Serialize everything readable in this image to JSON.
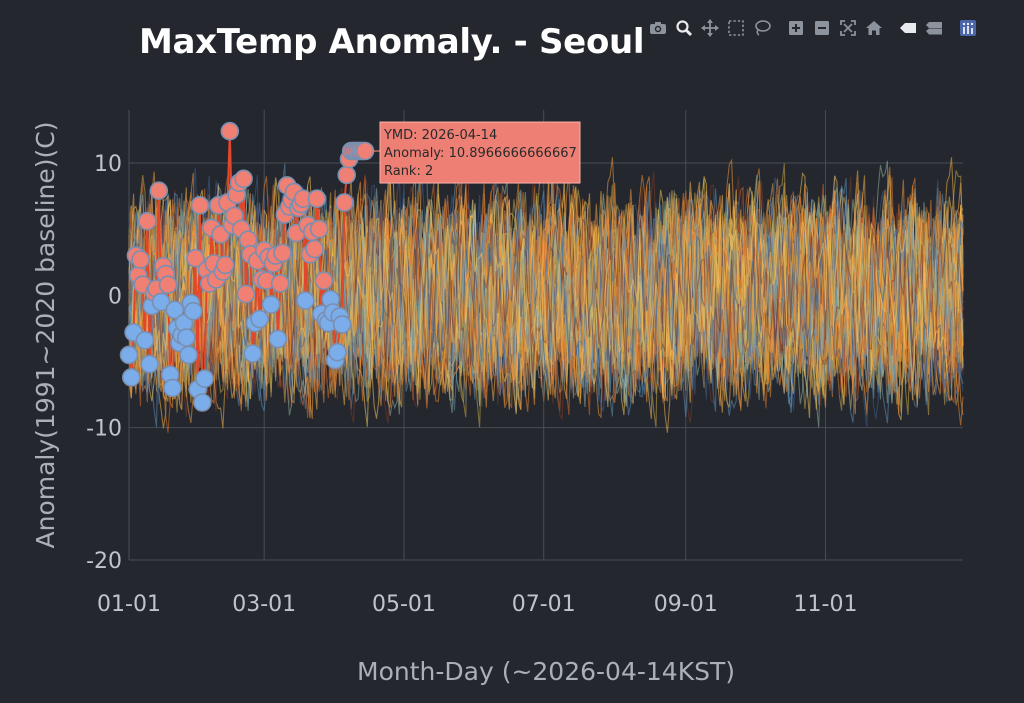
{
  "chart_data": {
    "type": "line",
    "title": "MaxTemp Anomaly. - Seoul",
    "xlabel": "Month-Day (~2026-04-14KST)",
    "ylabel": "Anomaly(1991~2020 baseline)(C)",
    "xlim": [
      "01-01",
      "12-31"
    ],
    "ylim": [
      -20,
      14
    ],
    "x_ticks": [
      "01-01",
      "03-01",
      "05-01",
      "07-01",
      "09-01",
      "11-01"
    ],
    "y_ticks": [
      10,
      0,
      -10,
      -20
    ],
    "grid": true,
    "legend": "none",
    "background_series": {
      "count": 60,
      "description_range": [
        -13,
        13
      ],
      "colors": [
        "#f2993a",
        "#f4b14a",
        "#e98a32",
        "#d96f2b",
        "#c9a747",
        "#8fb1a0",
        "#5c8fb8",
        "#3d5e8f",
        "#7b3b2a",
        "#f6c55b"
      ]
    },
    "highlight_series": {
      "year": "2026",
      "x": [
        "01-01",
        "01-02",
        "01-03",
        "01-04",
        "01-05",
        "01-06",
        "01-07",
        "01-08",
        "01-09",
        "01-10",
        "01-11",
        "01-12",
        "01-13",
        "01-14",
        "01-15",
        "01-16",
        "01-17",
        "01-18",
        "01-19",
        "01-20",
        "01-21",
        "01-22",
        "01-23",
        "01-24",
        "01-25",
        "01-26",
        "01-27",
        "01-28",
        "01-29",
        "01-30",
        "01-31",
        "02-01",
        "02-02",
        "02-03",
        "02-04",
        "02-05",
        "02-06",
        "02-07",
        "02-08",
        "02-09",
        "02-10",
        "02-11",
        "02-12",
        "02-13",
        "02-14",
        "02-15",
        "02-16",
        "02-17",
        "02-18",
        "02-19",
        "02-20",
        "02-21",
        "02-22",
        "02-23",
        "02-24",
        "02-25",
        "02-26",
        "02-27",
        "02-28",
        "03-01",
        "03-02",
        "03-03",
        "03-04",
        "03-05",
        "03-06",
        "03-07",
        "03-08",
        "03-09",
        "03-10",
        "03-11",
        "03-12",
        "03-13",
        "03-14",
        "03-15",
        "03-16",
        "03-17",
        "03-18",
        "03-19",
        "03-20",
        "03-21",
        "03-22",
        "03-23",
        "03-24",
        "03-25",
        "03-26",
        "03-27",
        "03-28",
        "03-29",
        "03-30",
        "03-31",
        "04-01",
        "04-02",
        "04-03",
        "04-04",
        "04-05",
        "04-06",
        "04-07",
        "04-08",
        "04-09",
        "04-10",
        "04-11",
        "04-12",
        "04-13",
        "04-14"
      ],
      "values": [
        -4.5,
        -6.2,
        -2.8,
        3.0,
        1.5,
        2.7,
        0.8,
        -3.4,
        5.6,
        -5.2,
        -0.8,
        0.2,
        0.5,
        7.9,
        -0.5,
        2.2,
        1.6,
        0.8,
        -6.0,
        -7.0,
        -1.1,
        -2.5,
        -3.6,
        -3.0,
        -2.1,
        -3.2,
        -4.5,
        -0.6,
        -1.2,
        2.8,
        -7.1,
        6.8,
        -8.1,
        -6.3,
        1.9,
        0.9,
        5.1,
        2.4,
        1.2,
        6.8,
        4.6,
        1.8,
        2.3,
        7.0,
        12.4,
        5.3,
        6.0,
        7.6,
        8.5,
        5.0,
        8.8,
        0.1,
        4.2,
        3.1,
        -4.4,
        -2.1,
        2.6,
        -1.8,
        1.2,
        3.4,
        1.1,
        2.9,
        -0.7,
        2.4,
        3.0,
        -3.3,
        0.9,
        3.2,
        6.1,
        8.3,
        6.7,
        7.2,
        7.8,
        4.7,
        6.6,
        6.9,
        7.3,
        -0.4,
        5.3,
        3.1,
        4.8,
        3.5,
        7.3,
        5.0,
        -1.4,
        1.1,
        -1.9,
        -2.1,
        -0.3,
        -1.3,
        -4.9,
        -4.3,
        -1.6,
        -2.2,
        7.0,
        9.1,
        10.3,
        10.9,
        10.9,
        10.9,
        10.9,
        10.9,
        10.9,
        10.9
      ],
      "positive_color": "#f07f74",
      "negative_color": "#7aadea"
    },
    "tooltip": {
      "ymd": "YMD: 2026-04-14",
      "anomaly": "Anomaly: 10.8966666666667",
      "rank": "Rank: 2"
    }
  },
  "modebar": {
    "buttons": [
      "camera-icon",
      "zoom-icon",
      "pan-icon",
      "box-select-icon",
      "lasso-icon",
      "zoom-in-icon",
      "zoom-out-icon",
      "autoscale-icon",
      "reset-axes-icon",
      "spike-lines-icon",
      "compare-hover-icon",
      "plotly-logo-icon"
    ]
  }
}
